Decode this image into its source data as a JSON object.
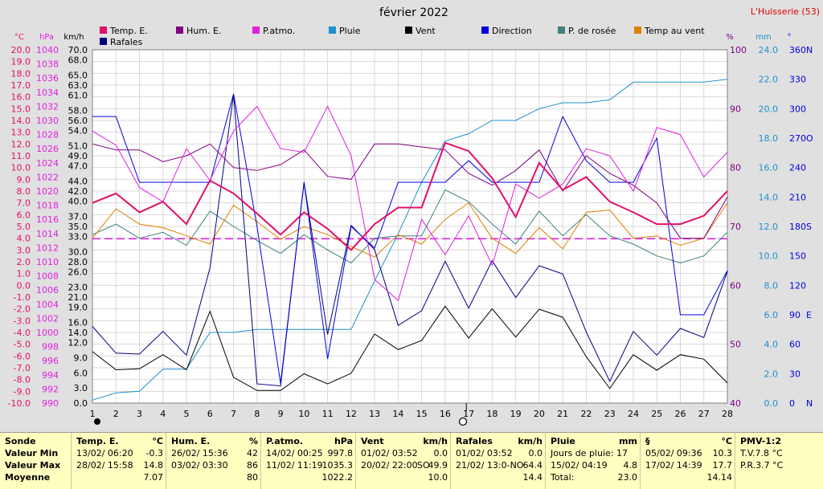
{
  "header": {
    "title": "février 2022",
    "station": "L'Huisserie (53)"
  },
  "legend": [
    {
      "label": "Temp. E.",
      "color": "#e0106a"
    },
    {
      "label": "Hum. E.",
      "color": "#800080"
    },
    {
      "label": "P.atmo.",
      "color": "#e020e0"
    },
    {
      "label": "Pluie",
      "color": "#1e90d0"
    },
    {
      "label": "Vent",
      "color": "#000000"
    },
    {
      "label": "Direction",
      "color": "#0000e0"
    },
    {
      "label": "P. de rosée",
      "color": "#408080"
    },
    {
      "label": "Temp au vent",
      "color": "#e08000"
    },
    {
      "label": "Rafales",
      "color": "#000080"
    }
  ],
  "axis_units": {
    "temp": "°C",
    "hpa": "hPa",
    "kmh": "km/h",
    "pct": "%",
    "mm": "mm",
    "deg": "°"
  },
  "chart_data": {
    "type": "line",
    "title": "février 2022",
    "x": [
      1,
      2,
      3,
      4,
      5,
      6,
      7,
      8,
      9,
      10,
      11,
      12,
      13,
      14,
      15,
      16,
      17,
      18,
      19,
      20,
      21,
      22,
      23,
      24,
      25,
      26,
      27,
      28
    ],
    "axes": {
      "temp": {
        "min": -10,
        "max": 20,
        "step": 1
      },
      "hpa": {
        "min": 990,
        "max": 1040,
        "step": 2
      },
      "kmh": {
        "min": 0,
        "max": 70,
        "ticks": [
          0,
          3.0,
          6.0,
          9.0,
          12.0,
          14.0,
          16.0,
          19.0,
          21.0,
          23.0,
          26.0,
          28.0,
          30.0,
          33.0,
          35.0,
          37.0,
          40.0,
          42.0,
          44.0,
          47.0,
          49.0,
          51.0,
          54.0,
          56.0,
          58.0,
          61.0,
          63.0,
          65.0,
          68.0,
          70.0
        ]
      },
      "pct": {
        "min": 40,
        "max": 100,
        "step": 10
      },
      "mm": {
        "min": 0,
        "max": 24,
        "step": 2
      },
      "deg": {
        "min": 0,
        "max": 360,
        "ticks": [
          0,
          30,
          60,
          90,
          120,
          150,
          180,
          210,
          240,
          270,
          300,
          330,
          360
        ],
        "labels": {
          "0": "N",
          "90": "E",
          "180": "S",
          "270": "O",
          "360": "N"
        }
      }
    },
    "series": [
      {
        "name": "Temp. E.",
        "axis": "temp",
        "color": "#e0106a",
        "width": 2,
        "values": [
          7.0,
          7.8,
          6.2,
          7.1,
          5.2,
          8.9,
          7.8,
          6.1,
          4.3,
          6.2,
          4.8,
          3.0,
          5.2,
          6.6,
          6.6,
          12.1,
          11.4,
          9.1,
          5.8,
          10.4,
          8.1,
          9.2,
          7.1,
          6.2,
          5.2,
          5.2,
          5.9,
          8.0
        ]
      },
      {
        "name": "Hum. E.",
        "axis": "pct",
        "color": "#800080",
        "width": 1,
        "values": [
          84,
          83,
          83,
          81,
          82,
          84,
          80,
          79.5,
          80.5,
          83,
          78.5,
          78,
          84,
          84,
          83.5,
          83,
          79,
          77,
          79.5,
          83,
          76,
          82,
          79,
          77,
          74,
          68,
          68,
          75
        ]
      },
      {
        "name": "P.atmo.",
        "axis": "hpa",
        "color": "#e020e0",
        "width": 1,
        "values": [
          1028.5,
          1026.5,
          1020.5,
          1018.5,
          1026,
          1021.5,
          1028.5,
          1032,
          1026,
          1025.5,
          1032,
          1025,
          1007.5,
          1004.5,
          1016,
          1011,
          1016.5,
          1009.5,
          1021,
          1019,
          1021,
          1026,
          1025,
          1020,
          1029,
          1028,
          1022,
          1025.5
        ]
      },
      {
        "name": "Pluie",
        "axis": "mm",
        "color": "#1e90d0",
        "width": 1,
        "values": [
          0.2,
          0.7,
          0.8,
          2.3,
          2.3,
          4.8,
          4.8,
          5.0,
          5.0,
          5.0,
          5.0,
          5.0,
          8.3,
          11.5,
          15.0,
          17.8,
          18.3,
          19.2,
          19.2,
          20.0,
          20.4,
          20.4,
          20.6,
          21.8,
          21.8,
          21.8,
          21.8,
          22.0
        ]
      },
      {
        "name": "Vent",
        "axis": "kmh",
        "color": "#000000",
        "width": 1,
        "values": [
          10.2,
          6.6,
          6.8,
          9.6,
          6.6,
          18.2,
          5.1,
          2.5,
          2.5,
          5.8,
          3.8,
          5.9,
          13.7,
          10.6,
          12.4,
          19.2,
          12.9,
          18.7,
          13.1,
          18.6,
          17.0,
          9.2,
          2.9,
          9.6,
          6.5,
          9.6,
          8.7,
          4.0
        ]
      },
      {
        "name": "Direction",
        "axis": "deg",
        "color": "#0000e0",
        "width": 1,
        "values": [
          292,
          292,
          225,
          225,
          225,
          225,
          315,
          180,
          20,
          225,
          45,
          180,
          158,
          225,
          225,
          225,
          247,
          225,
          225,
          225,
          292,
          247,
          225,
          225,
          270,
          90,
          90,
          135
        ]
      },
      {
        "name": "P. de rosée",
        "axis": "temp",
        "color": "#408080",
        "width": 1,
        "values": [
          4.3,
          5.2,
          4.0,
          4.5,
          3.4,
          6.3,
          5.0,
          3.8,
          2.7,
          4.3,
          3.0,
          1.9,
          4.0,
          4.2,
          4.2,
          8.1,
          7.1,
          5.2,
          3.5,
          6.3,
          4.2,
          6.0,
          4.2,
          3.5,
          2.5,
          1.9,
          2.5,
          4.5
        ]
      },
      {
        "name": "Temp au vent",
        "axis": "temp",
        "color": "#e08000",
        "width": 1,
        "values": [
          4.0,
          6.5,
          5.2,
          4.9,
          4.2,
          3.5,
          6.8,
          5.4,
          3.9,
          5.0,
          4.3,
          3.3,
          2.4,
          4.3,
          3.5,
          5.6,
          7.0,
          4.0,
          2.7,
          4.9,
          3.1,
          6.2,
          6.4,
          4.0,
          4.2,
          3.4,
          4.0,
          7.0
        ]
      },
      {
        "name": "Rafales",
        "axis": "kmh",
        "color": "#000080",
        "width": 1,
        "values": [
          15.2,
          9.9,
          9.7,
          14.2,
          9.5,
          26.8,
          61.1,
          3.8,
          3.4,
          43.8,
          13.6,
          35.2,
          30.4,
          15.4,
          18.3,
          28.1,
          18.8,
          28.2,
          20.9,
          27.2,
          25.6,
          14.1,
          4.3,
          14.2,
          9.5,
          14.8,
          13.0,
          26.1
        ]
      }
    ],
    "reference_line": {
      "axis": "hpa",
      "value": 1013.25,
      "color": "#e020e0",
      "style": "dashed"
    },
    "markers": {
      "new_moon_day": 1,
      "full_moon_day": 16.9
    }
  },
  "summary": {
    "sonde": {
      "title": "Sonde",
      "rows": [
        "Valeur Min",
        "Valeur Max",
        "Moyenne"
      ]
    },
    "temp": {
      "title": "Temp. E.",
      "unit": "°C",
      "rows": [
        {
          "date": "13/02/  06:20",
          "val": "-0.3"
        },
        {
          "date": "28/02/  15:58",
          "val": "14.8"
        },
        {
          "date": "",
          "val": "7.07"
        }
      ]
    },
    "hum": {
      "title": "Hum. E.",
      "unit": "%",
      "rows": [
        {
          "date": "26/02/  15:36",
          "val": "42"
        },
        {
          "date": "03/02/  03:30",
          "val": "86"
        },
        {
          "date": "",
          "val": "80"
        }
      ]
    },
    "patmo": {
      "title": "P.atmo.",
      "unit": "hPa",
      "rows": [
        {
          "date": "14/02/  00:25",
          "val": "997.8"
        },
        {
          "date": "11/02/  11:19",
          "val": "1035.3"
        },
        {
          "date": "",
          "val": "1022.2"
        }
      ]
    },
    "vent": {
      "title": "Vent",
      "unit": "km/h",
      "rows": [
        {
          "date": "01/02/  03:52",
          "val": "0.0"
        },
        {
          "date": "20/02/  22:00",
          "extra": "SO",
          "val": "49.9"
        },
        {
          "date": "",
          "val": "10.0"
        }
      ]
    },
    "rafales": {
      "title": "Rafales",
      "unit": "km/h",
      "rows": [
        {
          "date": "01/02/  03:52",
          "val": "0.0"
        },
        {
          "date": "21/02/  13:0-NO",
          "val": "64.4"
        },
        {
          "date": "",
          "val": "14.4"
        }
      ]
    },
    "pluie": {
      "title": "Pluie",
      "unit": "mm",
      "rows": [
        {
          "date": "Jours de pluie: 17",
          "val": ""
        },
        {
          "date": "15/02/  04:19",
          "val": "4.8"
        },
        {
          "date": "Total:",
          "val": "23.0"
        }
      ]
    },
    "rosee": {
      "title": "§",
      "unit": "°C",
      "rows": [
        {
          "date": "05/02/  09:36",
          "val": "10.3"
        },
        {
          "date": "17/02/  14:39",
          "val": "17.7"
        },
        {
          "date": "",
          "val": "14.14"
        }
      ]
    },
    "pmv": {
      "title": "PMV-1:2",
      "rows": [
        "T.V.7.8 °C",
        "P.R.3.7 °C",
        ""
      ]
    }
  }
}
